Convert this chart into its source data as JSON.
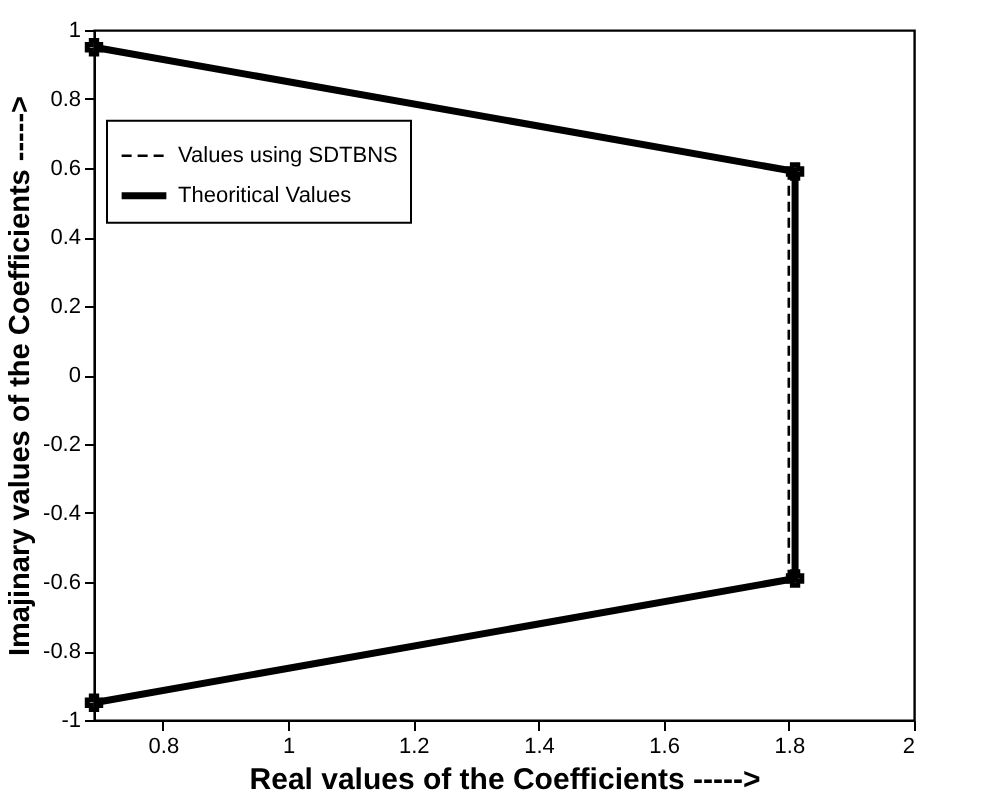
{
  "chart_data": {
    "type": "line",
    "xlabel": "Real values of the Coefficients ----->",
    "ylabel": "Imajinary values of the Coefficients ----->",
    "series": [
      {
        "name": "Values using SDTBNS",
        "color": "#000000",
        "line_style": "dashed",
        "x": [
          0.69,
          1.8,
          1.8,
          0.69
        ],
        "values": [
          0.95,
          0.59,
          -0.59,
          -0.95
        ]
      },
      {
        "name": "Theoritical Values",
        "color": "#000000",
        "line_style": "solid",
        "marker": "cross",
        "x": [
          0.69,
          1.81,
          1.81,
          0.69
        ],
        "values": [
          0.95,
          0.59,
          -0.59,
          -0.95
        ]
      }
    ],
    "xlim": [
      0.69,
      2
    ],
    "xticks": [
      0.8,
      1,
      1.2,
      1.4,
      1.6,
      1.8,
      2
    ],
    "ylim": [
      -1,
      1
    ],
    "yticks": [
      -1,
      -0.8,
      -0.6,
      -0.4,
      -0.2,
      0,
      0.2,
      0.4,
      0.6,
      0.8,
      1
    ],
    "grid": false,
    "legend": "left"
  }
}
